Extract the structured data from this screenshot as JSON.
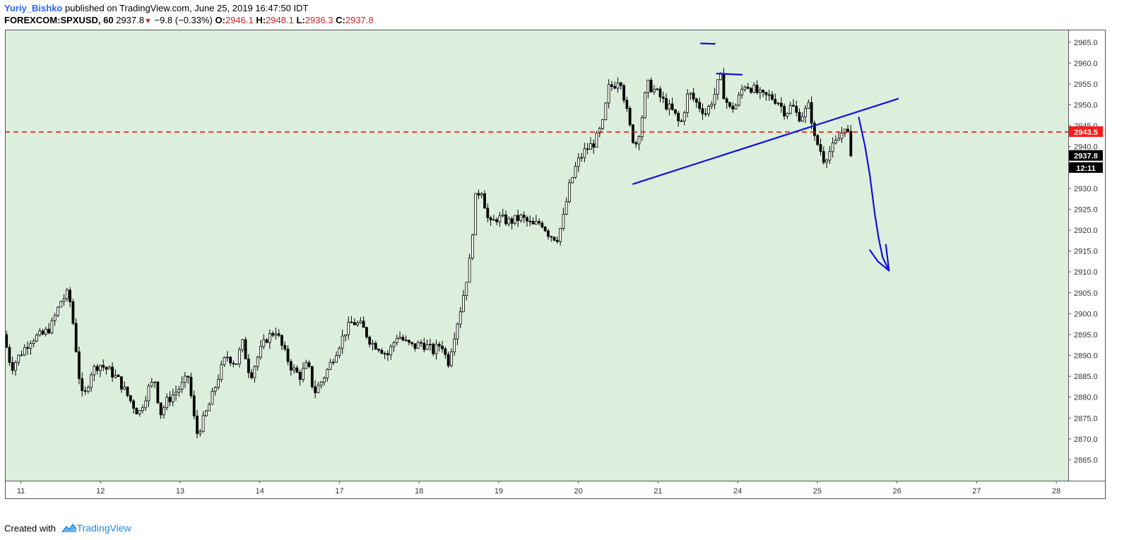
{
  "header": {
    "author": "Yuriy_Bishko",
    "published": " published on TradingView.com, June 25, 2019 16:47:50 IDT",
    "symbol": "FOREXCOM:SPXUSD, 60",
    "last": "2937.8",
    "change": "−9.8 (−0.33%)",
    "o_label": "O:",
    "o_value": "2946.1",
    "h_label": "H:",
    "h_value": "2948.1",
    "l_label": "L:",
    "l_value": "2936.3",
    "c_label": "C:",
    "c_value": "2937.8"
  },
  "footer": {
    "created_with": "Created with",
    "brand": "TradingView"
  },
  "colors": {
    "plot_bg": "#dcefdc",
    "candle_up": "#ffffff",
    "candle_down": "#000000",
    "drawing": "#1010e0",
    "level": "#ff0000",
    "last_price_bg": "#000000",
    "level_label_bg": "#ff1a1a"
  },
  "chart_data": {
    "type": "candlestick",
    "title": "",
    "xlabel": "",
    "ylabel": "",
    "ylim": [
      2860,
      2968
    ],
    "y_ticks": [
      2865,
      2870,
      2875,
      2880,
      2885,
      2890,
      2895,
      2900,
      2905,
      2910,
      2915,
      2920,
      2925,
      2930,
      2935,
      2940,
      2945,
      2950,
      2955,
      2960,
      2965
    ],
    "x_ticks": [
      {
        "label": "11",
        "x": 0.2
      },
      {
        "label": "12",
        "x": 1.2
      },
      {
        "label": "13",
        "x": 2.2
      },
      {
        "label": "14",
        "x": 3.2
      },
      {
        "label": "17",
        "x": 4.2
      },
      {
        "label": "18",
        "x": 5.2
      },
      {
        "label": "19",
        "x": 6.2
      },
      {
        "label": "20",
        "x": 7.2
      },
      {
        "label": "21",
        "x": 8.2
      },
      {
        "label": "24",
        "x": 9.2
      },
      {
        "label": "25",
        "x": 10.2
      },
      {
        "label": "26",
        "x": 11.2
      },
      {
        "label": "27",
        "x": 12.2
      },
      {
        "label": "28",
        "x": 13.2
      }
    ],
    "xlim": [
      0,
      13.35
    ],
    "price_path": [
      [
        0.0,
        2895
      ],
      [
        0.1,
        2887
      ],
      [
        0.2,
        2890
      ],
      [
        0.35,
        2894
      ],
      [
        0.5,
        2895
      ],
      [
        0.6,
        2897
      ],
      [
        0.72,
        2903
      ],
      [
        0.82,
        2905
      ],
      [
        0.88,
        2897
      ],
      [
        0.95,
        2885
      ],
      [
        1.0,
        2879
      ],
      [
        1.1,
        2886
      ],
      [
        1.2,
        2888
      ],
      [
        1.35,
        2886
      ],
      [
        1.45,
        2884
      ],
      [
        1.6,
        2879
      ],
      [
        1.7,
        2876
      ],
      [
        1.82,
        2882
      ],
      [
        1.9,
        2884
      ],
      [
        1.97,
        2876
      ],
      [
        2.05,
        2879
      ],
      [
        2.15,
        2881
      ],
      [
        2.25,
        2883
      ],
      [
        2.32,
        2885
      ],
      [
        2.38,
        2877
      ],
      [
        2.42,
        2871
      ],
      [
        2.5,
        2874
      ],
      [
        2.6,
        2879
      ],
      [
        2.7,
        2885
      ],
      [
        2.8,
        2890
      ],
      [
        2.92,
        2888
      ],
      [
        3.0,
        2893
      ],
      [
        3.1,
        2885
      ],
      [
        3.2,
        2890
      ],
      [
        3.3,
        2894
      ],
      [
        3.42,
        2896
      ],
      [
        3.52,
        2891
      ],
      [
        3.62,
        2887
      ],
      [
        3.72,
        2885
      ],
      [
        3.82,
        2888
      ],
      [
        3.9,
        2881
      ],
      [
        4.0,
        2884
      ],
      [
        4.08,
        2887
      ],
      [
        4.2,
        2892
      ],
      [
        4.3,
        2896
      ],
      [
        4.38,
        2898
      ],
      [
        4.5,
        2897
      ],
      [
        4.62,
        2893
      ],
      [
        4.72,
        2892
      ],
      [
        4.82,
        2890
      ],
      [
        4.95,
        2895
      ],
      [
        5.05,
        2893
      ],
      [
        5.15,
        2892
      ],
      [
        5.25,
        2893
      ],
      [
        5.4,
        2891
      ],
      [
        5.5,
        2893
      ],
      [
        5.58,
        2888
      ],
      [
        5.66,
        2895
      ],
      [
        5.75,
        2902
      ],
      [
        5.85,
        2912
      ],
      [
        5.93,
        2928
      ],
      [
        6.0,
        2930
      ],
      [
        6.1,
        2921
      ],
      [
        6.2,
        2923
      ],
      [
        6.35,
        2922
      ],
      [
        6.5,
        2923
      ],
      [
        6.65,
        2921
      ],
      [
        6.75,
        2922
      ],
      [
        6.85,
        2919
      ],
      [
        6.95,
        2918
      ],
      [
        7.02,
        2922
      ],
      [
        7.1,
        2930
      ],
      [
        7.2,
        2936
      ],
      [
        7.3,
        2939
      ],
      [
        7.42,
        2941
      ],
      [
        7.52,
        2945
      ],
      [
        7.6,
        2954
      ],
      [
        7.68,
        2955
      ],
      [
        7.74,
        2957
      ],
      [
        7.8,
        2951
      ],
      [
        7.86,
        2945
      ],
      [
        7.93,
        2940
      ],
      [
        8.0,
        2945
      ],
      [
        8.08,
        2955
      ],
      [
        8.2,
        2953
      ],
      [
        8.32,
        2950
      ],
      [
        8.42,
        2948
      ],
      [
        8.5,
        2945
      ],
      [
        8.6,
        2953
      ],
      [
        8.72,
        2950
      ],
      [
        8.82,
        2948
      ],
      [
        8.92,
        2952
      ],
      [
        9.0,
        2957
      ],
      [
        9.05,
        2952
      ],
      [
        9.12,
        2949
      ],
      [
        9.2,
        2950
      ],
      [
        9.3,
        2955
      ],
      [
        9.4,
        2954
      ],
      [
        9.52,
        2952
      ],
      [
        9.62,
        2952
      ],
      [
        9.72,
        2951
      ],
      [
        9.82,
        2948
      ],
      [
        9.9,
        2950
      ],
      [
        9.98,
        2947
      ],
      [
        10.05,
        2948
      ],
      [
        10.12,
        2950
      ],
      [
        10.18,
        2942
      ],
      [
        10.24,
        2940
      ],
      [
        10.3,
        2937
      ],
      [
        10.38,
        2939
      ],
      [
        10.46,
        2941
      ],
      [
        10.52,
        2943
      ],
      [
        10.58,
        2946
      ],
      [
        10.64,
        2937.8
      ]
    ],
    "price_labels": [
      {
        "value": 2943.5,
        "text": "2943.5",
        "kind": "level"
      },
      {
        "value": 2937.8,
        "text": "2937.8",
        "kind": "last"
      },
      {
        "value": 2934.9,
        "text": "12:11",
        "kind": "countdown"
      }
    ],
    "horizontal_level": 2943.5,
    "trendline": {
      "from": [
        7.88,
        2931
      ],
      "to": [
        11.22,
        2951.5
      ]
    },
    "drawn_marks": [
      {
        "from": [
          8.73,
          2964.7
        ],
        "to": [
          8.92,
          2964.6
        ]
      },
      {
        "from": [
          8.93,
          2957.5
        ],
        "to": [
          9.26,
          2957.2
        ]
      }
    ],
    "arrow_path": [
      [
        10.72,
        2947
      ],
      [
        10.8,
        2940
      ],
      [
        10.86,
        2933
      ],
      [
        10.92,
        2924
      ],
      [
        10.97,
        2918
      ],
      [
        11.02,
        2913.5
      ],
      [
        11.1,
        2910.3
      ]
    ],
    "arrow_head": [
      [
        10.86,
        2915.2
      ],
      [
        10.96,
        2912.5
      ],
      [
        11.1,
        2910.3
      ],
      [
        11.06,
        2916.5
      ]
    ]
  }
}
